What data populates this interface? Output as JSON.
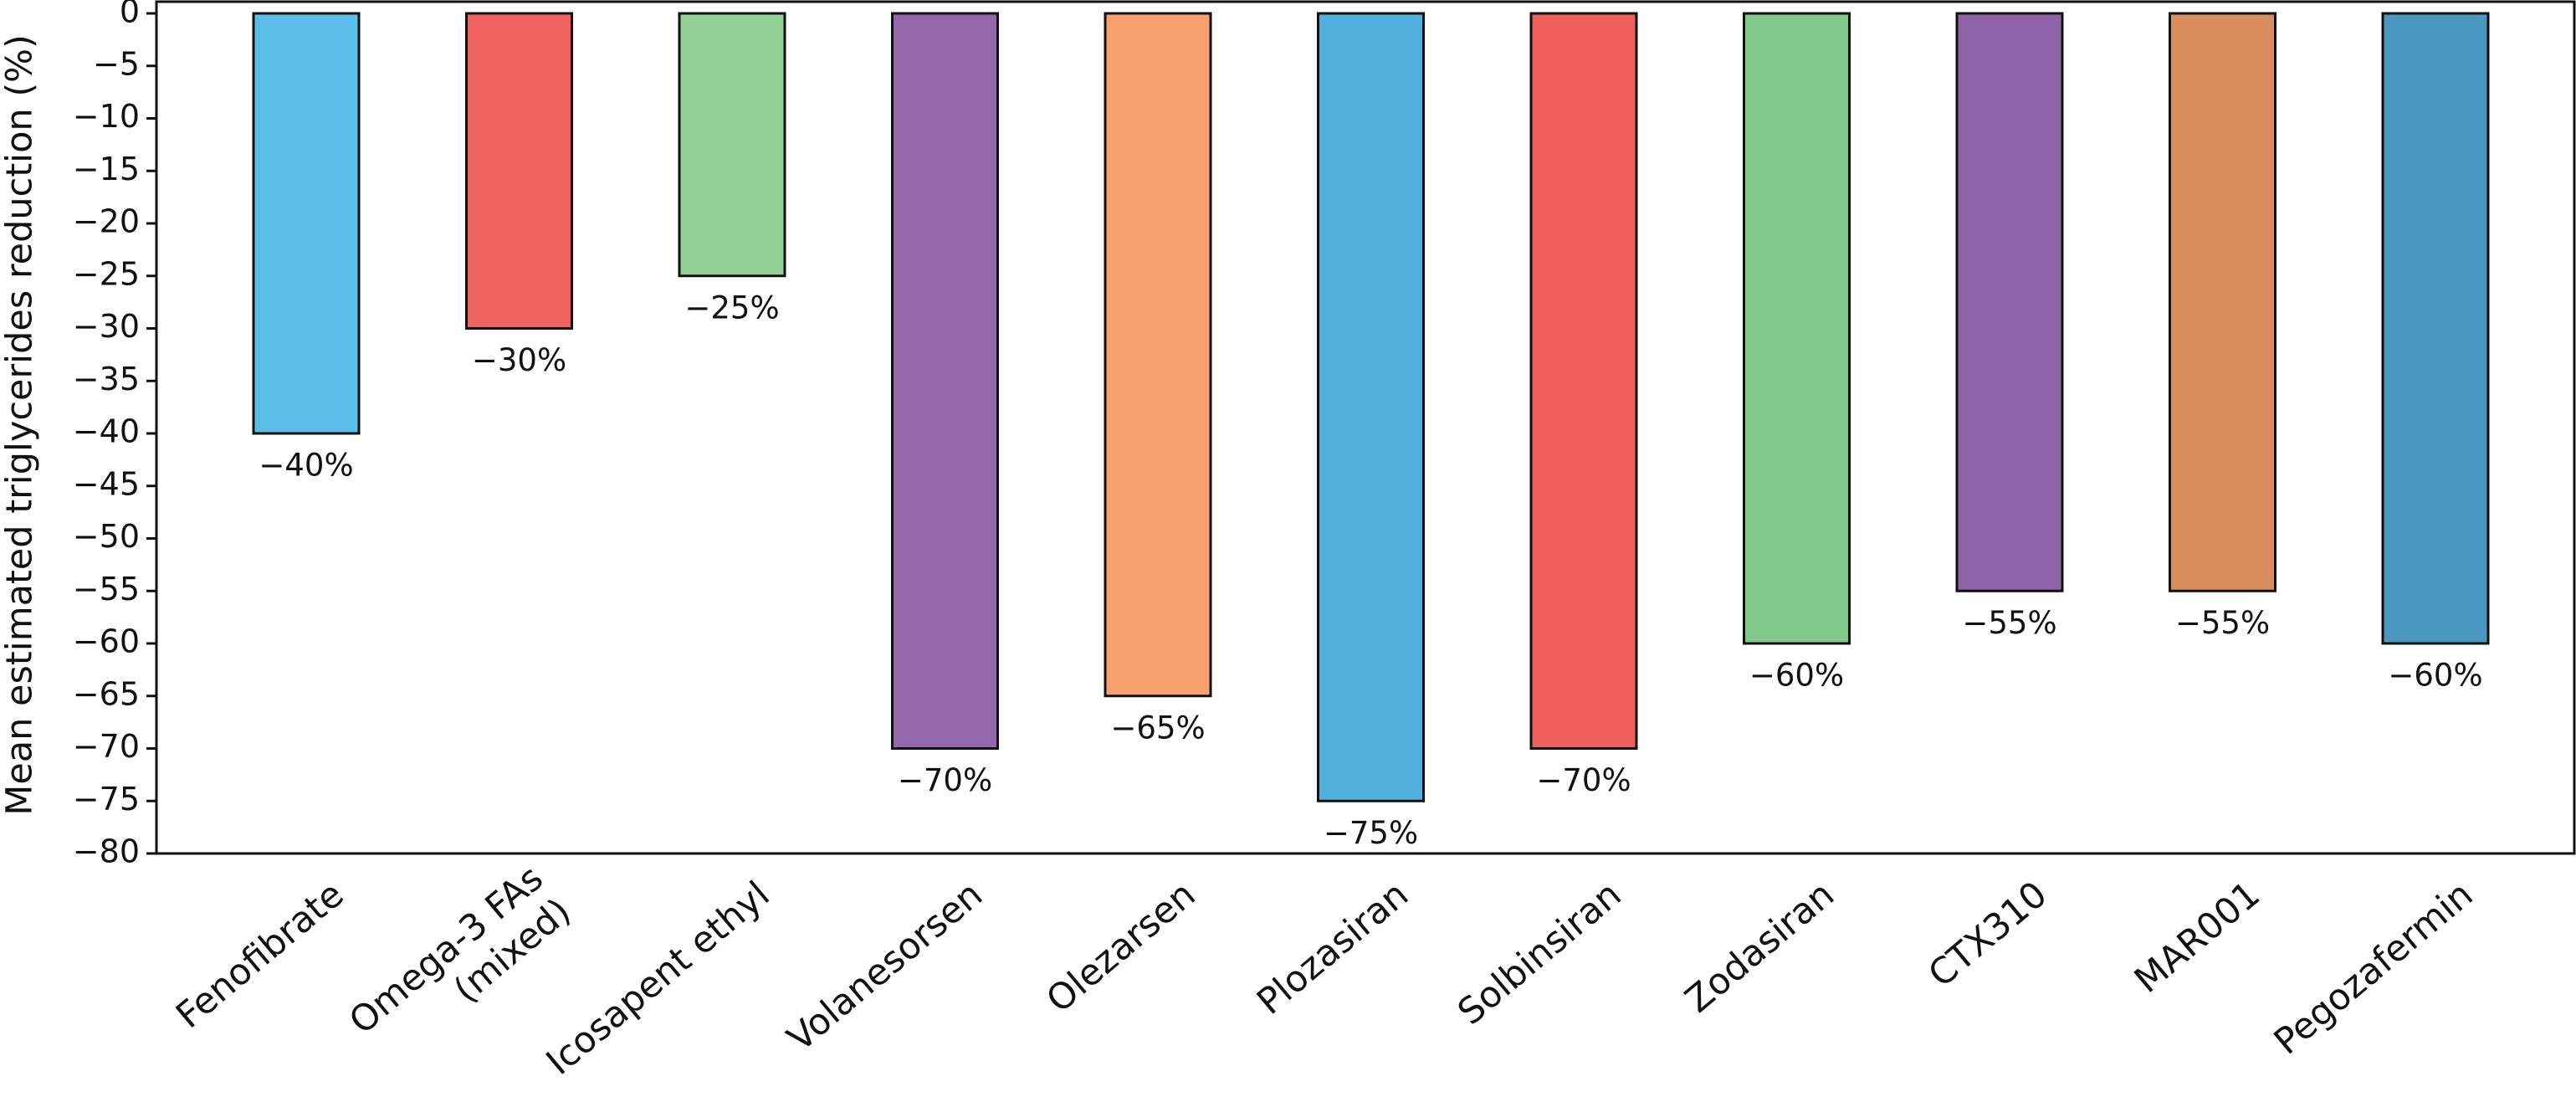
{
  "chart_data": {
    "type": "bar",
    "y_label": "Mean estimated triglycerides reduction (%)",
    "categories": [
      "Fenofibrate",
      "Omega-3 FAs\n(mixed)",
      "Icosapent ethyl",
      "Volanesorsen",
      "Olezarsen",
      "Plozasiran",
      "Solbinsiran",
      "Zodasiran",
      "CTX310",
      "MAR001",
      "Pegozafermin"
    ],
    "values": [
      -40,
      -30,
      -25,
      -70,
      -65,
      -75,
      -70,
      -60,
      -55,
      -55,
      -60
    ],
    "value_labels": [
      "−40%",
      "−30%",
      "−25%",
      "−70%",
      "−65%",
      "−75%",
      "−70%",
      "−60%",
      "−55%",
      "−55%",
      "−60%"
    ],
    "colors": [
      "#5bbfea",
      "#f06360",
      "#93d095",
      "#9468ab",
      "#f9a06f",
      "#52b0dc",
      "#ef5f5b",
      "#80c98a",
      "#8e63a8",
      "#d98e5e",
      "#4a98c0"
    ],
    "ylim": [
      0,
      -80
    ],
    "yticks": [
      0,
      {
        "value": -5,
        "label": "−5"
      },
      {
        "value": -10,
        "label": "−10"
      },
      {
        "value": -15,
        "label": "−15"
      },
      {
        "value": -20,
        "label": "−20"
      },
      {
        "value": -25,
        "label": "−25"
      },
      {
        "value": -30,
        "label": "−30"
      },
      {
        "value": -35,
        "label": "−35"
      },
      {
        "value": -40,
        "label": "−40"
      },
      {
        "value": -45,
        "label": "−45"
      },
      {
        "value": -50,
        "label": "−50"
      },
      {
        "value": -55,
        "label": "−55"
      },
      {
        "value": -60,
        "label": "−60"
      },
      {
        "value": -65,
        "label": "−65"
      },
      {
        "value": -70,
        "label": "−70"
      },
      {
        "value": -75,
        "label": "−75"
      },
      {
        "value": -80,
        "label": "−80"
      }
    ],
    "grid": false
  }
}
